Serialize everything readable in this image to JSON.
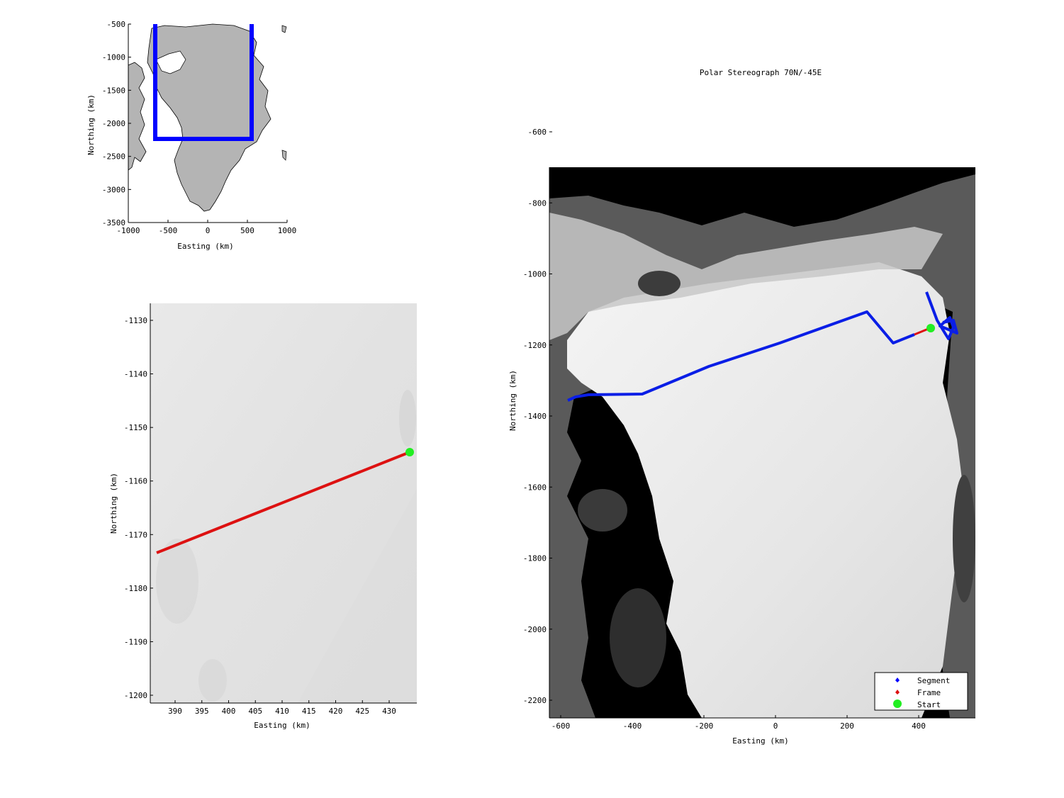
{
  "overview": {
    "xlabel": "Easting (km)",
    "ylabel": "Northing (km)",
    "xticks": [
      "-1000",
      "-500",
      "0",
      "500",
      "1000"
    ],
    "yticks": [
      "-500",
      "-1000",
      "-1500",
      "-2000",
      "-2500",
      "-3000",
      "-3500"
    ],
    "box_color": "#0000ff",
    "land_color": "#b4b4b4"
  },
  "frame_map": {
    "xlabel": "Easting (km)",
    "ylabel": "Northing (km)",
    "xticks": [
      "390",
      "395",
      "400",
      "405",
      "410",
      "415",
      "420",
      "425",
      "430"
    ],
    "yticks": [
      "-1130",
      "-1140",
      "-1150",
      "-1160",
      "-1170",
      "-1180",
      "-1190",
      "-1200"
    ],
    "frame_color": "#dd1111",
    "start_color": "#22ee22"
  },
  "main_map": {
    "title": "Polar Stereograph 70N/-45E",
    "xlabel": "Easting (km)",
    "ylabel": "Northing (km)",
    "xticks": [
      "-600",
      "-400",
      "-200",
      "0",
      "200",
      "400"
    ],
    "yticks": [
      "-600",
      "-800",
      "-1000",
      "-1200",
      "-1400",
      "-1600",
      "-1800",
      "-2000",
      "-2200"
    ],
    "segment_color": "#0a1ee6",
    "frame_color": "#dd1111",
    "start_color": "#22ee22",
    "legend": [
      {
        "label": "Segment",
        "color": "#0000ff"
      },
      {
        "label": "Frame",
        "color": "#dd1111"
      },
      {
        "label": "Start",
        "color": "#22ee22"
      }
    ]
  }
}
